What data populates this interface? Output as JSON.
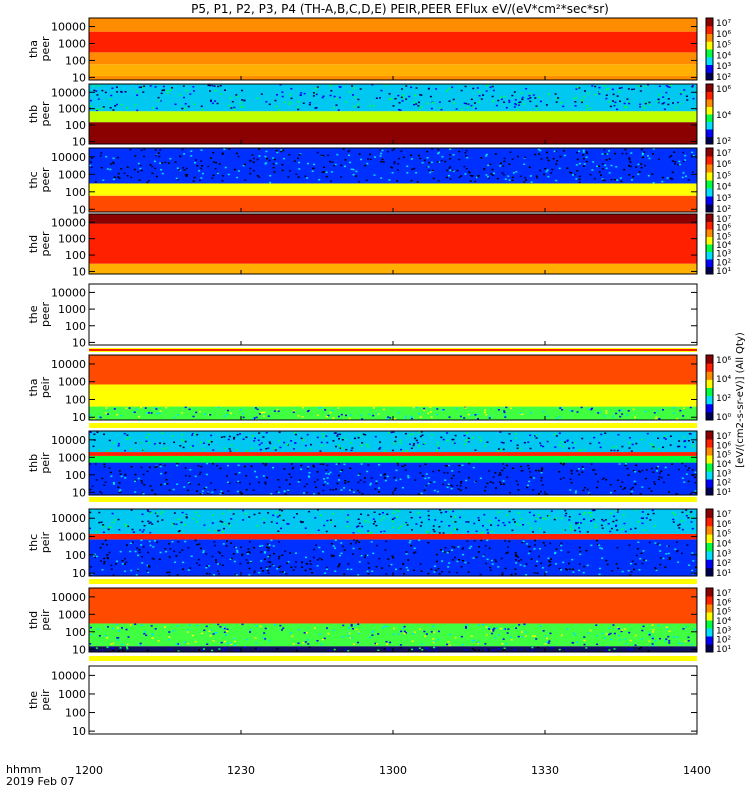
{
  "title": "P5, P1, P2, P3, P4 (TH-A,B,C,D,E) PEIR,PEER EFlux eV/(eV*cm²*sec*sr)",
  "colors": {
    "dark_red": "#8b0000",
    "red": "#ff2000",
    "orange": "#ff8c00",
    "yellow": "#ffff00",
    "green": "#00ff40",
    "cyan": "#00e0ff",
    "blue": "#0000ff",
    "navy": "#000050",
    "white": "#ffffff"
  },
  "x_axis": {
    "label_line1": "hhmm",
    "label_line2": "2019 Feb 07",
    "ticks": [
      "1200",
      "1230",
      "1300",
      "1330",
      "1400"
    ],
    "range_minutes": [
      0,
      120
    ]
  },
  "colorbar_label": "[eV/(cm2-s-sr-eV)] (All Qty)",
  "chart_data": [
    {
      "type": "heatmap",
      "panel": "tha-peer",
      "ylabel_lines": [
        "tha",
        "peer"
      ],
      "scale": "log",
      "yticks": [
        "10000",
        "1000",
        "100",
        "10"
      ],
      "ylim": [
        7,
        32000
      ],
      "colorbar_ticks": [
        "10⁷",
        "10⁶",
        "10⁵",
        "10⁴",
        "10³",
        "10²"
      ],
      "bands": [
        {
          "energy": [
            7,
            12
          ],
          "level": "orange"
        },
        {
          "energy": [
            12,
            60
          ],
          "level": "yellow-orange"
        },
        {
          "energy": [
            60,
            300
          ],
          "level": "orange"
        },
        {
          "energy": [
            300,
            5000
          ],
          "level": "red"
        },
        {
          "energy": [
            5000,
            32000
          ],
          "level": "orange"
        }
      ]
    },
    {
      "type": "heatmap",
      "panel": "thb-peer",
      "ylabel_lines": [
        "thb",
        "peer"
      ],
      "scale": "log",
      "yticks": [
        "10000",
        "1000",
        "100",
        "10"
      ],
      "ylim": [
        7,
        32000
      ],
      "colorbar_ticks": [
        "10⁶",
        "10⁴",
        "10²"
      ],
      "bands": [
        {
          "energy": [
            7,
            150
          ],
          "level": "dark-red"
        },
        {
          "energy": [
            150,
            700
          ],
          "level": "yellow-green"
        },
        {
          "energy": [
            700,
            32000
          ],
          "level": "noise-cyan"
        }
      ]
    },
    {
      "type": "heatmap",
      "panel": "thc-peer",
      "ylabel_lines": [
        "thc",
        "peer"
      ],
      "scale": "log",
      "yticks": [
        "10000",
        "1000",
        "100",
        "10"
      ],
      "ylim": [
        7,
        32000
      ],
      "colorbar_ticks": [
        "10⁷",
        "10⁶",
        "10⁵",
        "10⁴",
        "10³",
        "10²"
      ],
      "bands": [
        {
          "energy": [
            7,
            60
          ],
          "level": "orange-red"
        },
        {
          "energy": [
            60,
            300
          ],
          "level": "yellow"
        },
        {
          "energy": [
            300,
            32000
          ],
          "level": "noise-blue"
        }
      ]
    },
    {
      "type": "heatmap",
      "panel": "thd-peer",
      "ylabel_lines": [
        "thd",
        "peer"
      ],
      "scale": "log",
      "yticks": [
        "10000",
        "1000",
        "100",
        "10"
      ],
      "ylim": [
        7,
        32000
      ],
      "colorbar_ticks": [
        "10⁷",
        "10⁶",
        "10⁵",
        "10⁴",
        "10³",
        "10²",
        "10¹"
      ],
      "bands": [
        {
          "energy": [
            7,
            30
          ],
          "level": "yellow-orange"
        },
        {
          "energy": [
            30,
            8000
          ],
          "level": "red"
        },
        {
          "energy": [
            8000,
            32000
          ],
          "level": "dark-red"
        }
      ]
    },
    {
      "type": "heatmap",
      "panel": "the-peer",
      "ylabel_lines": [
        "the",
        "peer"
      ],
      "scale": "log",
      "yticks": [
        "10000",
        "1000",
        "100",
        "10"
      ],
      "ylim": [
        7,
        32000
      ],
      "colorbar_ticks": [],
      "bands": []
    },
    {
      "type": "heatmap",
      "panel": "tha-peir",
      "ylabel_lines": [
        "tha",
        "peir"
      ],
      "scale": "log",
      "yticks": [
        "10000",
        "1000",
        "100",
        "10"
      ],
      "ylim": [
        7,
        32000
      ],
      "colorbar_ticks": [
        "10⁶",
        "10⁴",
        "10²",
        "10⁰"
      ],
      "bands": [
        {
          "energy": [
            7,
            40
          ],
          "level": "noise-green"
        },
        {
          "energy": [
            40,
            700
          ],
          "level": "yellow"
        },
        {
          "energy": [
            700,
            32000
          ],
          "level": "orange-red"
        }
      ]
    },
    {
      "type": "heatmap",
      "panel": "thb-peir",
      "ylabel_lines": [
        "thb",
        "peir"
      ],
      "scale": "log",
      "yticks": [
        "10000",
        "1000",
        "100",
        "10"
      ],
      "ylim": [
        7,
        32000
      ],
      "colorbar_ticks": [
        "10⁷",
        "10⁶",
        "10⁵",
        "10⁴",
        "10³",
        "10²",
        "10¹"
      ],
      "bands": [
        {
          "energy": [
            7,
            500
          ],
          "level": "noise-blue"
        },
        {
          "energy": [
            500,
            1200
          ],
          "level": "green"
        },
        {
          "energy": [
            1200,
            2000
          ],
          "level": "red"
        },
        {
          "energy": [
            2000,
            32000
          ],
          "level": "noise-cyan"
        }
      ]
    },
    {
      "type": "heatmap",
      "panel": "thc-peir",
      "ylabel_lines": [
        "thc",
        "peir"
      ],
      "scale": "log",
      "yticks": [
        "10000",
        "1000",
        "100",
        "10"
      ],
      "ylim": [
        7,
        32000
      ],
      "colorbar_ticks": [
        "10⁷",
        "10⁶",
        "10⁵",
        "10⁴",
        "10³",
        "10²",
        "10¹"
      ],
      "bands": [
        {
          "energy": [
            7,
            700
          ],
          "level": "noise-blue"
        },
        {
          "energy": [
            700,
            1400
          ],
          "level": "red"
        },
        {
          "energy": [
            1400,
            32000
          ],
          "level": "noise-cyan"
        }
      ]
    },
    {
      "type": "heatmap",
      "panel": "thd-peir",
      "ylabel_lines": [
        "thd",
        "peir"
      ],
      "scale": "log",
      "yticks": [
        "10000",
        "1000",
        "100",
        "10"
      ],
      "ylim": [
        7,
        32000
      ],
      "colorbar_ticks": [
        "10⁷",
        "10⁶",
        "10⁵",
        "10⁴",
        "10³",
        "10²",
        "10¹"
      ],
      "bands": [
        {
          "energy": [
            7,
            15
          ],
          "level": "noise-navy"
        },
        {
          "energy": [
            15,
            300
          ],
          "level": "noise-green"
        },
        {
          "energy": [
            300,
            32000
          ],
          "level": "orange-red"
        }
      ]
    },
    {
      "type": "heatmap",
      "panel": "the-peir",
      "ylabel_lines": [
        "the",
        "peir"
      ],
      "scale": "log",
      "yticks": [
        "10000",
        "1000",
        "100",
        "10"
      ],
      "ylim": [
        7,
        32000
      ],
      "colorbar_ticks": [],
      "bands": []
    }
  ]
}
